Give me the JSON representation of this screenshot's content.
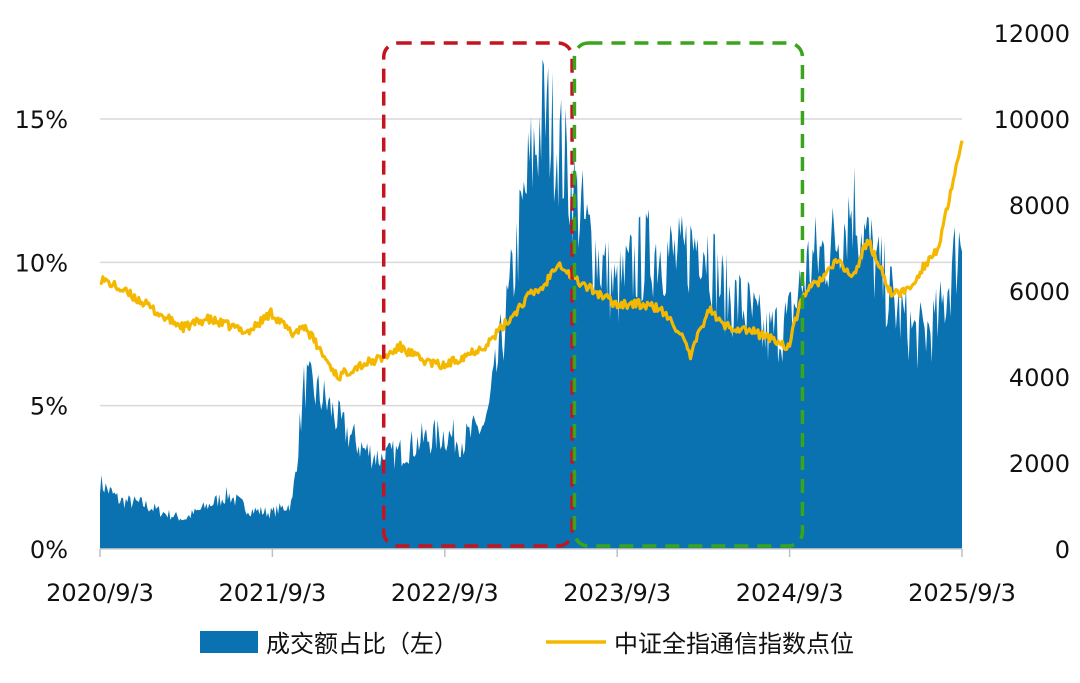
{
  "chart_data": {
    "type": "area",
    "title": "",
    "xlabel": "",
    "ylabel": "",
    "x_tick_labels": [
      "2020/9/3",
      "2021/9/3",
      "2022/9/3",
      "2023/9/3",
      "2024/9/3",
      "2025/9/3"
    ],
    "x_range": [
      "2020-09-03",
      "2025-09-03"
    ],
    "y_left": {
      "ticks": [
        "0%",
        "5%",
        "10%",
        "15%"
      ],
      "tick_values": [
        0,
        5,
        10,
        15
      ],
      "range": [
        0,
        15
      ],
      "unit": "%"
    },
    "y_right": {
      "ticks": [
        "0",
        "2000",
        "4000",
        "6000",
        "8000",
        "10000",
        "12000"
      ],
      "tick_values": [
        0,
        2000,
        4000,
        6000,
        8000,
        10000,
        12000
      ],
      "range": [
        0,
        12000
      ]
    },
    "grid": "horizontal",
    "legend_position": "bottom",
    "series": [
      {
        "name": "成交额占比（左）",
        "kind": "area",
        "axis": "left",
        "color": "#0a72b0",
        "x": [
          "2020-09-03",
          "2020-10-15",
          "2020-12-01",
          "2021-01-15",
          "2021-03-01",
          "2021-04-15",
          "2021-06-01",
          "2021-07-15",
          "2021-09-01",
          "2021-10-15",
          "2021-11-10",
          "2021-12-20",
          "2022-02-01",
          "2022-03-15",
          "2022-04-20",
          "2022-06-01",
          "2022-07-15",
          "2022-09-01",
          "2022-10-15",
          "2022-12-01",
          "2023-01-15",
          "2023-03-01",
          "2023-04-01",
          "2023-05-01",
          "2023-06-01",
          "2023-07-01",
          "2023-08-01",
          "2023-09-01",
          "2023-10-15",
          "2023-12-01",
          "2024-01-15",
          "2024-03-01",
          "2024-04-15",
          "2024-06-01",
          "2024-07-15",
          "2024-09-01",
          "2024-10-15",
          "2024-12-01",
          "2025-01-15",
          "2025-03-01",
          "2025-04-15",
          "2025-06-01",
          "2025-07-15",
          "2025-09-03"
        ],
        "values": [
          2.2,
          1.6,
          1.5,
          1.2,
          1.0,
          1.4,
          1.8,
          1.3,
          1.2,
          1.5,
          5.5,
          5.0,
          4.0,
          3.3,
          3.0,
          3.2,
          3.6,
          3.8,
          3.6,
          4.2,
          8.0,
          12.5,
          14.5,
          13.5,
          12.0,
          10.5,
          9.5,
          8.5,
          9.5,
          10.0,
          9.5,
          10.5,
          8.5,
          8.0,
          7.0,
          7.5,
          9.5,
          10.0,
          11.5,
          9.5,
          8.0,
          7.0,
          7.5,
          10.5
        ]
      },
      {
        "name": "中证全指通信指数点位",
        "kind": "line",
        "axis": "right",
        "color": "#f5b800",
        "x": [
          "2020-09-03",
          "2020-10-15",
          "2020-12-01",
          "2021-01-15",
          "2021-03-01",
          "2021-04-15",
          "2021-06-01",
          "2021-07-15",
          "2021-09-01",
          "2021-10-15",
          "2021-11-10",
          "2021-12-20",
          "2022-01-20",
          "2022-03-01",
          "2022-04-27",
          "2022-06-01",
          "2022-07-15",
          "2022-09-01",
          "2022-10-15",
          "2022-12-01",
          "2023-01-15",
          "2023-03-01",
          "2023-04-01",
          "2023-05-01",
          "2023-06-01",
          "2023-07-01",
          "2023-08-01",
          "2023-09-01",
          "2023-10-15",
          "2023-12-01",
          "2024-01-15",
          "2024-02-05",
          "2024-03-15",
          "2024-04-15",
          "2024-06-01",
          "2024-07-15",
          "2024-09-01",
          "2024-09-30",
          "2024-11-01",
          "2024-12-15",
          "2025-01-15",
          "2025-02-15",
          "2025-04-08",
          "2025-05-15",
          "2025-06-15",
          "2025-07-15",
          "2025-08-15",
          "2025-09-03"
        ],
        "values": [
          6300,
          6050,
          5750,
          5400,
          5150,
          5350,
          5200,
          5050,
          5500,
          5000,
          5200,
          4500,
          4000,
          4250,
          4450,
          4700,
          4400,
          4250,
          4500,
          4750,
          5300,
          5900,
          6100,
          6700,
          6300,
          6100,
          5900,
          5700,
          5700,
          5600,
          5050,
          4450,
          5600,
          5200,
          5100,
          4950,
          4700,
          5900,
          6200,
          6700,
          6300,
          7200,
          5900,
          6050,
          6600,
          7000,
          8500,
          9500
        ]
      }
    ],
    "annotations": [
      {
        "type": "dashed-box",
        "color": "#c4141f",
        "x_start": "2022-04-27",
        "x_end": "2023-05-31"
      },
      {
        "type": "dashed-box",
        "color": "#3aa41c",
        "x_start": "2023-06-05",
        "x_end": "2024-09-30"
      }
    ]
  }
}
